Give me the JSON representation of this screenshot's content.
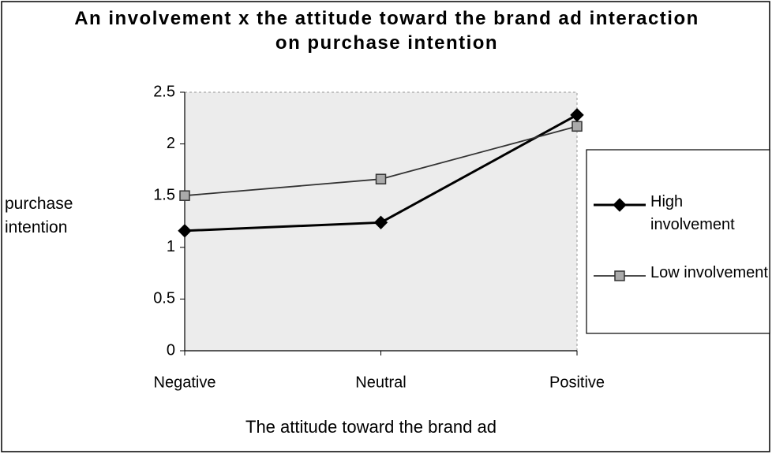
{
  "chart_data": {
    "type": "line",
    "title": "An involvement x the attitude toward the brand ad interaction on purchase intention",
    "x_label": "The attitude toward the brand ad",
    "y_label": "purchase intention",
    "categories": [
      "Negative",
      "Neutral",
      "Positive"
    ],
    "series": [
      {
        "name": "High involvement",
        "color": "#000000",
        "marker": "diamond",
        "values": [
          1.16,
          1.24,
          2.28
        ]
      },
      {
        "name": "Low involvement",
        "color": "#333333",
        "marker": "square",
        "values": [
          1.5,
          1.66,
          2.17
        ]
      }
    ],
    "ylim": [
      0,
      2.5
    ],
    "yticks": [
      0,
      0.5,
      1,
      1.5,
      2,
      2.5
    ],
    "legend": "right"
  }
}
